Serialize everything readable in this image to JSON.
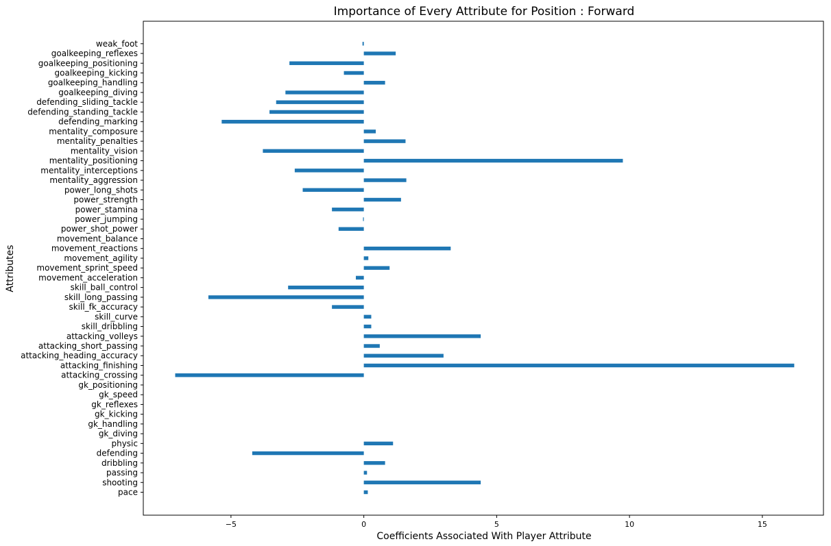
{
  "chart_data": {
    "type": "bar",
    "orientation": "horizontal",
    "title": "Importance of Every Attribute for Position : Forward",
    "xlabel": "Coefficients Associated With Player Attribute",
    "ylabel": "Attributes",
    "xlim": [
      -8.3,
      17.3
    ],
    "xticks": [
      -5,
      0,
      5,
      10,
      15
    ],
    "xtick_labels": [
      "−5",
      "0",
      "5",
      "10",
      "15"
    ],
    "bar_color": "#1f77b4",
    "grid": false,
    "categories": [
      "pace",
      "shooting",
      "passing",
      "dribbling",
      "defending",
      "physic",
      "gk_diving",
      "gk_handling",
      "gk_kicking",
      "gk_reflexes",
      "gk_speed",
      "gk_positioning",
      "attacking_crossing",
      "attacking_finishing",
      "attacking_heading_accuracy",
      "attacking_short_passing",
      "attacking_volleys",
      "skill_dribbling",
      "skill_curve",
      "skill_fk_accuracy",
      "skill_long_passing",
      "skill_ball_control",
      "movement_acceleration",
      "movement_sprint_speed",
      "movement_agility",
      "movement_reactions",
      "movement_balance",
      "power_shot_power",
      "power_jumping",
      "power_stamina",
      "power_strength",
      "power_long_shots",
      "mentality_aggression",
      "mentality_interceptions",
      "mentality_positioning",
      "mentality_vision",
      "mentality_penalties",
      "mentality_composure",
      "defending_marking",
      "defending_standing_tackle",
      "defending_sliding_tackle",
      "goalkeeping_diving",
      "goalkeeping_handling",
      "goalkeeping_kicking",
      "goalkeeping_positioning",
      "goalkeeping_reflexes",
      "weak_foot"
    ],
    "values": [
      0.15,
      4.4,
      0.12,
      0.8,
      -4.2,
      1.1,
      0,
      0,
      0,
      0,
      0,
      0,
      -7.1,
      16.2,
      3.0,
      0.6,
      4.4,
      0.28,
      0.28,
      -1.2,
      -5.85,
      -2.85,
      -0.3,
      0.97,
      0.17,
      3.27,
      0,
      -0.95,
      -0.03,
      -1.2,
      1.4,
      -2.3,
      1.6,
      -2.6,
      9.75,
      -3.8,
      1.57,
      0.45,
      -5.35,
      -3.55,
      -3.3,
      -2.95,
      0.8,
      -0.75,
      -2.8,
      1.2,
      -0.05
    ]
  }
}
